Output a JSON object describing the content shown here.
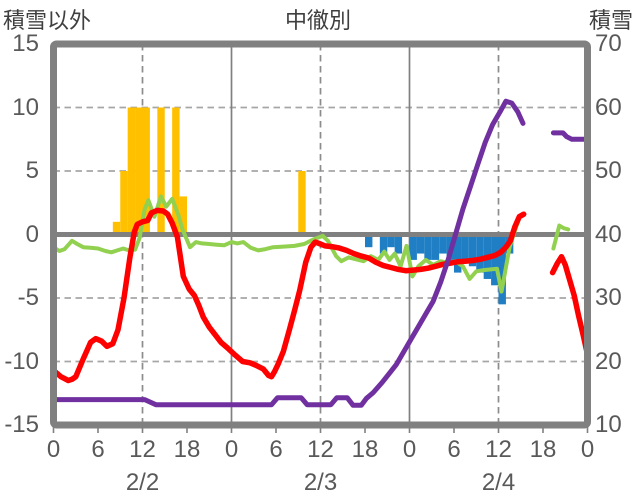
{
  "header": {
    "left_label": "積雪以外",
    "title": "中徹別",
    "right_label": "積雪"
  },
  "chart_data": {
    "type": "bar+line",
    "title": "中徹別",
    "left_axis": {
      "label": "積雪以外",
      "ticks": [
        15,
        10,
        5,
        0,
        -5,
        -10,
        -15
      ],
      "range": [
        -15,
        15
      ],
      "grid_values": [
        10,
        5,
        -5,
        -10
      ],
      "zero_line_value": 0
    },
    "right_axis": {
      "label": "積雪",
      "ticks": [
        70,
        60,
        50,
        40,
        30,
        20,
        10
      ],
      "range": [
        10,
        70
      ]
    },
    "x_axis": {
      "range_hours": [
        0,
        72
      ],
      "tick_step_hours": 6,
      "hour_tick_labels": [
        "0",
        "6",
        "12",
        "18",
        "0",
        "6",
        "12",
        "18",
        "0",
        "6",
        "12",
        "18",
        "0"
      ],
      "date_labels": [
        "2/2",
        "2/3",
        "2/4"
      ],
      "date_center_hours": [
        12,
        36,
        60
      ],
      "solid_gridline_hours": [
        24,
        48
      ],
      "dashed_gridline_hours": [
        12,
        36,
        60
      ]
    },
    "style": {
      "frame_color": "#808080",
      "grid_dash_color": "#a6a6a6",
      "zero_line_color": "#808080",
      "text_color": "#595959",
      "title_color": "#3f3f3f",
      "background": "#ffffff"
    },
    "series": [
      {
        "name": "snowfall-bars",
        "type": "bar",
        "axis": "left",
        "color": "#FFC000",
        "points": [
          [
            8,
            1
          ],
          [
            9,
            5
          ],
          [
            10,
            10
          ],
          [
            11,
            10
          ],
          [
            12,
            10
          ],
          [
            14,
            10
          ],
          [
            16,
            10
          ],
          [
            17,
            3
          ],
          [
            33,
            5
          ]
        ]
      },
      {
        "name": "negative-bars",
        "type": "bar",
        "axis": "left",
        "color": "#1F7EC4",
        "points": [
          [
            42,
            -1
          ],
          [
            44,
            -1.5
          ],
          [
            45,
            -1
          ],
          [
            46,
            -1.5
          ],
          [
            48,
            -2
          ],
          [
            49,
            -1.5
          ],
          [
            50,
            -2
          ],
          [
            51,
            -2
          ],
          [
            52,
            -1.5
          ],
          [
            53,
            -2
          ],
          [
            54,
            -3
          ],
          [
            55,
            -2
          ],
          [
            56,
            -2.5
          ],
          [
            57,
            -3
          ],
          [
            58,
            -3.5
          ],
          [
            59,
            -4
          ],
          [
            60,
            -5.5
          ],
          [
            61,
            -1.5
          ]
        ]
      },
      {
        "name": "green-line",
        "type": "line",
        "axis": "left",
        "color": "#92D050",
        "width": 4,
        "segments": [
          [
            [
              0,
              -1.0
            ],
            [
              0.8,
              -1.3
            ],
            [
              1.5,
              -1.15
            ],
            [
              2.5,
              -0.5
            ],
            [
              3.2,
              -0.75
            ],
            [
              4,
              -1.0
            ],
            [
              5,
              -1.05
            ],
            [
              6,
              -1.1
            ],
            [
              7,
              -1.3
            ],
            [
              7.8,
              -1.4
            ],
            [
              8.6,
              -1.25
            ],
            [
              9.4,
              -1.1
            ],
            [
              10.2,
              -1.25
            ],
            [
              11,
              -1.2
            ],
            [
              11.6,
              -0.3
            ],
            [
              12.3,
              2.0
            ],
            [
              12.8,
              2.7
            ],
            [
              13.6,
              1.4
            ],
            [
              14.5,
              3.0
            ],
            [
              15.2,
              2.2
            ],
            [
              16,
              2.8
            ],
            [
              16.8,
              1.6
            ],
            [
              17.4,
              0.4
            ],
            [
              18.4,
              -1.0
            ],
            [
              19.2,
              -0.6
            ],
            [
              20,
              -0.7
            ],
            [
              21,
              -0.75
            ],
            [
              22,
              -0.8
            ],
            [
              23,
              -0.85
            ],
            [
              24,
              -0.6
            ],
            [
              24.8,
              -0.7
            ],
            [
              25.6,
              -0.6
            ],
            [
              26.6,
              -1.05
            ],
            [
              27.6,
              -1.25
            ],
            [
              28.6,
              -1.15
            ],
            [
              29.6,
              -1.0
            ],
            [
              31,
              -0.95
            ],
            [
              32.5,
              -0.9
            ],
            [
              33.8,
              -0.75
            ],
            [
              35,
              -0.4
            ],
            [
              36.3,
              -0.1
            ],
            [
              37,
              -0.5
            ],
            [
              38.1,
              -1.7
            ],
            [
              38.8,
              -2.1
            ],
            [
              39.8,
              -1.8
            ],
            [
              40.8,
              -1.95
            ],
            [
              41.8,
              -2.1
            ],
            [
              42.8,
              -1.7
            ],
            [
              43.8,
              -2.0
            ],
            [
              44.6,
              -1.35
            ],
            [
              45.3,
              -2.0
            ],
            [
              46,
              -1.5
            ],
            [
              46.8,
              -2.5
            ],
            [
              47.6,
              -0.9
            ],
            [
              48.4,
              -3.3
            ],
            [
              49.2,
              -2.5
            ],
            [
              50.2,
              -2.0
            ],
            [
              51.2,
              -2.4
            ],
            [
              52.2,
              -2.1
            ],
            [
              53.2,
              -2.25
            ],
            [
              54.2,
              -2.1
            ],
            [
              55.2,
              -2.5
            ],
            [
              56.1,
              -3.5
            ],
            [
              57,
              -2.9
            ],
            [
              58,
              -2.8
            ],
            [
              59,
              -2.75
            ],
            [
              59.8,
              -2.7
            ],
            [
              60.4,
              -4.5
            ],
            [
              61,
              -2.6
            ],
            [
              61.5,
              -1.0
            ],
            [
              62.1,
              0.1
            ],
            [
              62.8,
              1.3
            ]
          ],
          [
            [
              67.4,
              -1.1
            ],
            [
              68.2,
              0.7
            ],
            [
              68.8,
              0.5
            ],
            [
              69.4,
              0.4
            ]
          ]
        ]
      },
      {
        "name": "red-line",
        "type": "line",
        "axis": "left",
        "color": "#FF0000",
        "width": 5.5,
        "segments": [
          [
            [
              0,
              -10.7
            ],
            [
              1,
              -11.2
            ],
            [
              2,
              -11.5
            ],
            [
              2.5,
              -11.4
            ],
            [
              3,
              -11.2
            ],
            [
              4,
              -9.8
            ],
            [
              5,
              -8.5
            ],
            [
              5.7,
              -8.2
            ],
            [
              6.5,
              -8.4
            ],
            [
              7.2,
              -8.8
            ],
            [
              8,
              -8.6
            ],
            [
              8.7,
              -7.5
            ],
            [
              9.5,
              -5
            ],
            [
              10.3,
              -1.8
            ],
            [
              10.9,
              0.2
            ],
            [
              11.3,
              0.8
            ],
            [
              12,
              1.0
            ],
            [
              12.7,
              1.1
            ],
            [
              13.2,
              1.7
            ],
            [
              14,
              1.9
            ],
            [
              14.8,
              1.85
            ],
            [
              15.4,
              1.6
            ],
            [
              16,
              0.9
            ],
            [
              16.7,
              -0.2
            ],
            [
              17.5,
              -3.3
            ],
            [
              18.3,
              -4.3
            ],
            [
              19,
              -4.8
            ],
            [
              19.6,
              -5.6
            ],
            [
              20.2,
              -6.5
            ],
            [
              21,
              -7.3
            ],
            [
              21.8,
              -7.9
            ],
            [
              22.6,
              -8.5
            ],
            [
              23.4,
              -8.9
            ],
            [
              24.5,
              -9.5
            ],
            [
              25.5,
              -10.0
            ],
            [
              26.5,
              -10.1
            ],
            [
              27.3,
              -10.3
            ],
            [
              28.3,
              -10.6
            ],
            [
              29,
              -11.1
            ],
            [
              29.4,
              -11.2
            ],
            [
              29.8,
              -10.8
            ],
            [
              30.3,
              -10.2
            ],
            [
              31,
              -9.2
            ],
            [
              31.8,
              -7.5
            ],
            [
              32.5,
              -6
            ],
            [
              33.2,
              -4.4
            ],
            [
              34,
              -2.2
            ],
            [
              34.7,
              -1.0
            ],
            [
              35.3,
              -0.6
            ],
            [
              36,
              -0.75
            ],
            [
              36.6,
              -0.9
            ],
            [
              37.5,
              -0.95
            ],
            [
              38.4,
              -1.05
            ],
            [
              39.5,
              -1.25
            ],
            [
              40.5,
              -1.5
            ],
            [
              41.5,
              -1.7
            ],
            [
              42.5,
              -1.85
            ],
            [
              43.5,
              -2.2
            ],
            [
              44.5,
              -2.45
            ],
            [
              45.5,
              -2.6
            ],
            [
              46.5,
              -2.75
            ],
            [
              47.5,
              -2.85
            ],
            [
              48.5,
              -2.8
            ],
            [
              49.5,
              -2.75
            ],
            [
              50.5,
              -2.65
            ],
            [
              51.5,
              -2.5
            ],
            [
              52.5,
              -2.35
            ],
            [
              53.5,
              -2.25
            ],
            [
              54.5,
              -2.15
            ],
            [
              55.5,
              -2.1
            ],
            [
              56.5,
              -2.05
            ],
            [
              57.5,
              -1.95
            ],
            [
              58.5,
              -1.8
            ],
            [
              59.5,
              -1.65
            ],
            [
              60.3,
              -1.4
            ],
            [
              61,
              -1.0
            ],
            [
              61.6,
              -0.5
            ],
            [
              62.2,
              0.6
            ],
            [
              62.8,
              1.4
            ],
            [
              63.4,
              1.6
            ]
          ],
          [
            [
              67.3,
              -3.0
            ],
            [
              67.9,
              -2.3
            ],
            [
              68.5,
              -1.75
            ],
            [
              69,
              -2.4
            ],
            [
              69.5,
              -3.4
            ],
            [
              70.2,
              -4.8
            ],
            [
              70.8,
              -6.4
            ],
            [
              71.4,
              -7.9
            ],
            [
              71.9,
              -9.2
            ]
          ]
        ]
      },
      {
        "name": "purple-line",
        "type": "line",
        "axis": "right",
        "color": "#7030A0",
        "width": 5,
        "segments": [
          [
            [
              0,
              14
            ],
            [
              12.3,
              14
            ],
            [
              13.8,
              13.2
            ],
            [
              29.4,
              13.2
            ],
            [
              30.2,
              14.3
            ],
            [
              33.4,
              14.3
            ],
            [
              34.2,
              13.2
            ],
            [
              37.4,
              13.2
            ],
            [
              38.2,
              14.3
            ],
            [
              39.6,
              14.3
            ],
            [
              40.4,
              13.1
            ],
            [
              41.5,
              13.1
            ],
            [
              42.2,
              14.2
            ],
            [
              43.1,
              15.1
            ],
            [
              44.3,
              16.7
            ],
            [
              45.2,
              18
            ],
            [
              46.2,
              19.5
            ],
            [
              47.2,
              21.5
            ],
            [
              48.2,
              23.5
            ],
            [
              49.2,
              25.5
            ],
            [
              50.2,
              27.5
            ],
            [
              51.2,
              29.5
            ],
            [
              52.2,
              32.5
            ],
            [
              53.2,
              36
            ],
            [
              54.2,
              40
            ],
            [
              55.2,
              44
            ],
            [
              56.2,
              47.5
            ],
            [
              57.2,
              51
            ],
            [
              58.2,
              54.5
            ],
            [
              59.2,
              57.3
            ],
            [
              60.2,
              59.3
            ],
            [
              61,
              61
            ],
            [
              61.8,
              60.7
            ],
            [
              62.6,
              59.3
            ],
            [
              63.3,
              57.5
            ]
          ],
          [
            [
              67.4,
              56
            ],
            [
              68.7,
              56
            ],
            [
              69.2,
              55.4
            ],
            [
              69.9,
              55
            ],
            [
              72,
              55
            ]
          ]
        ]
      }
    ]
  }
}
